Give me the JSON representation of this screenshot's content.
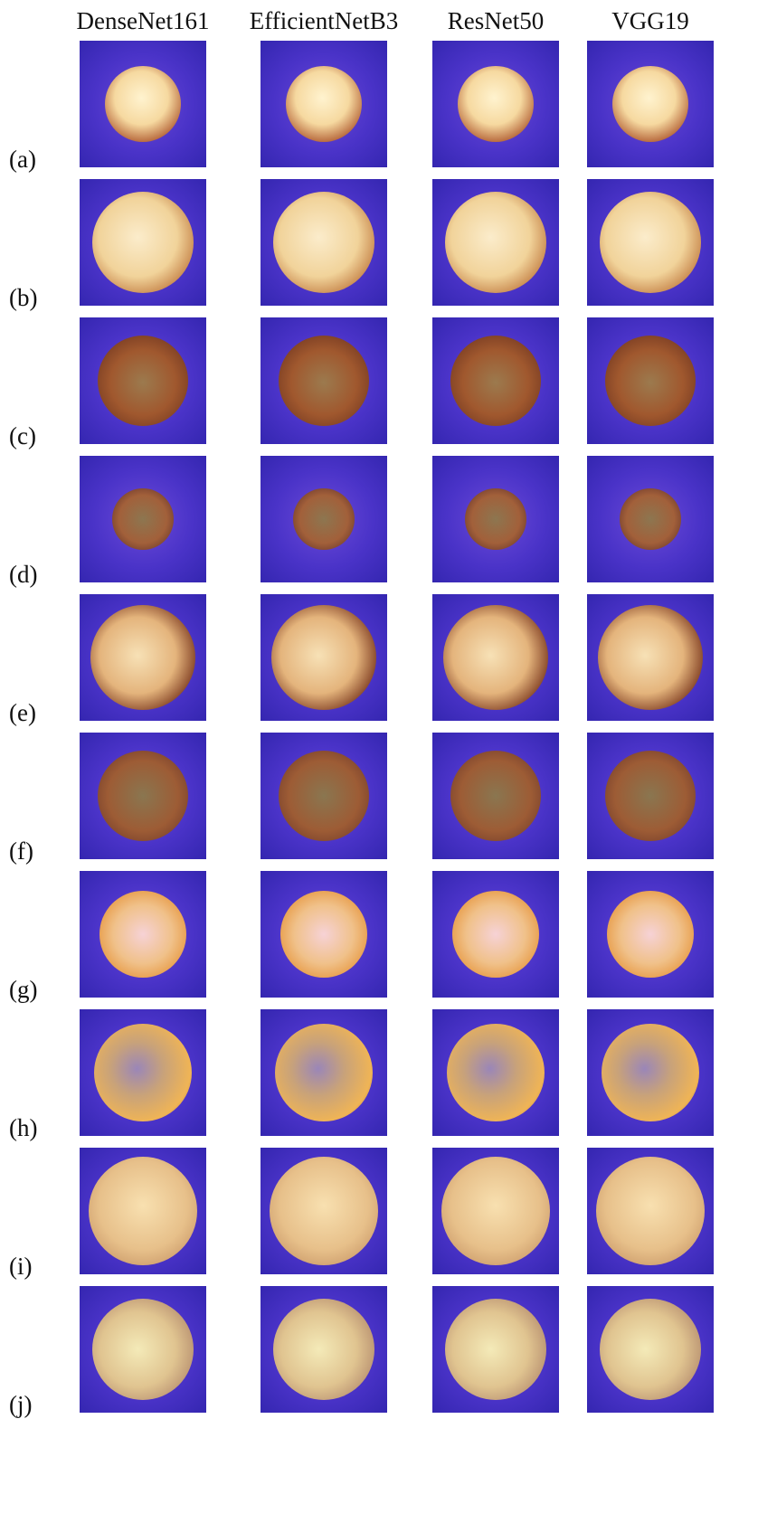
{
  "columns": [
    "DenseNet161",
    "EfficientNetB3",
    "ResNet50",
    "VGG19"
  ],
  "rows": [
    "(a)",
    "(b)",
    "(c)",
    "(d)",
    "(e)",
    "(f)",
    "(g)",
    "(h)",
    "(i)",
    "(j)"
  ]
}
